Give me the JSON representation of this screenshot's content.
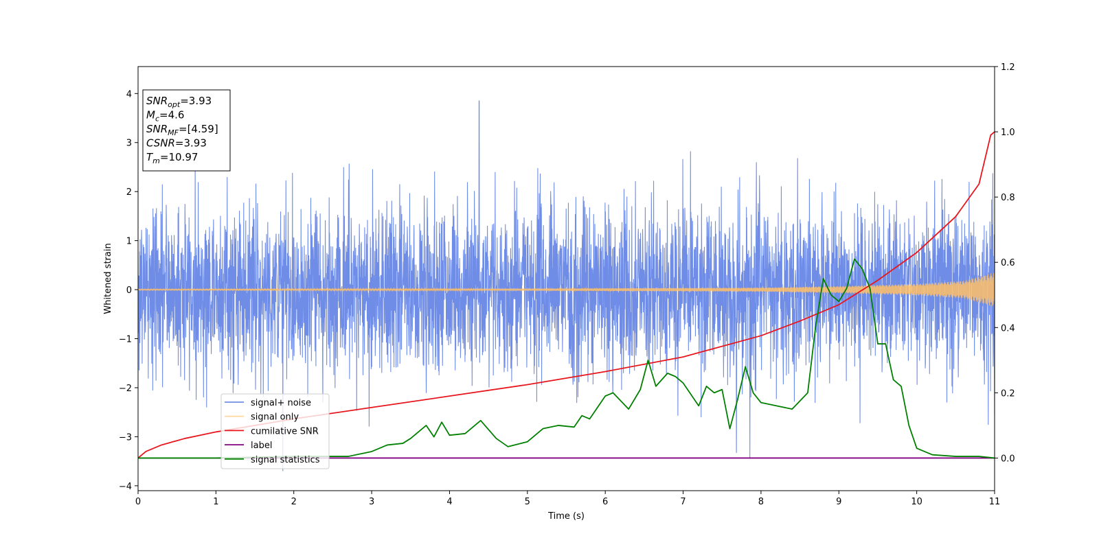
{
  "chart_data": {
    "type": "line",
    "xlabel": "Time (s)",
    "ylabel": "Whitened strain",
    "xlim": [
      0,
      11
    ],
    "ylim": [
      -4.1,
      4.55
    ],
    "y2lim": [
      -0.1,
      1.2
    ],
    "x_ticks": [
      0,
      1,
      2,
      3,
      4,
      5,
      6,
      7,
      8,
      9,
      10,
      11
    ],
    "y_ticks": [
      -4,
      -3,
      -2,
      -1,
      0,
      1,
      2,
      3,
      4
    ],
    "y2_ticks": [
      0.0,
      0.2,
      0.4,
      0.6,
      0.8,
      1.0,
      1.2
    ],
    "grid": false,
    "legend_placement": "lower-left",
    "info_box": [
      {
        "sym": "SNR",
        "sub": "opt",
        "value": "=3.93"
      },
      {
        "sym": "M",
        "sub": "c",
        "value": "=4.6"
      },
      {
        "sym": "SNR",
        "sub": "MF",
        "value": "=[4.59]"
      },
      {
        "sym": "CSNR",
        "sub": "",
        "value": "=3.93"
      },
      {
        "sym": "T",
        "sub": "m",
        "value": "=10.97"
      }
    ],
    "series": [
      {
        "name": "signal+ noise",
        "color": "#6f8de6",
        "axis": "left",
        "kind": "noise",
        "std": 0.85,
        "peak": 3.85,
        "trough": -3.7
      },
      {
        "name": "signal only",
        "color": "#ffbf66",
        "axis": "left",
        "kind": "chirp",
        "amplitude_envelope": {
          "x": [
            0,
            5,
            8,
            9,
            10,
            10.6,
            11
          ],
          "y": [
            0.01,
            0.02,
            0.04,
            0.07,
            0.12,
            0.18,
            0.35
          ]
        }
      },
      {
        "name": "cumilative SNR",
        "color": "#e8151c",
        "axis": "right",
        "kind": "line",
        "x": [
          0,
          0.1,
          0.3,
          0.6,
          1,
          2,
          3,
          4,
          5,
          6,
          7,
          8,
          8.5,
          9,
          9.5,
          10,
          10.5,
          10.8,
          10.95,
          11
        ],
        "y": [
          0.0,
          0.02,
          0.04,
          0.06,
          0.08,
          0.12,
          0.155,
          0.19,
          0.225,
          0.265,
          0.31,
          0.375,
          0.42,
          0.47,
          0.545,
          0.63,
          0.74,
          0.84,
          0.99,
          1.0
        ]
      },
      {
        "name": "label",
        "color": "#800080",
        "axis": "right",
        "kind": "line",
        "x": [
          0,
          11
        ],
        "y": [
          0.0,
          0.0
        ]
      },
      {
        "name": "signal statistics",
        "color": "#008000",
        "axis": "right",
        "kind": "line",
        "x": [
          0,
          1,
          2,
          2.7,
          3,
          3.2,
          3.4,
          3.5,
          3.7,
          3.8,
          3.9,
          4.0,
          4.2,
          4.4,
          4.6,
          4.75,
          5.0,
          5.2,
          5.4,
          5.6,
          5.7,
          5.8,
          5.9,
          6.0,
          6.1,
          6.3,
          6.45,
          6.55,
          6.65,
          6.8,
          6.9,
          7.0,
          7.2,
          7.3,
          7.4,
          7.5,
          7.6,
          7.7,
          7.8,
          7.9,
          8.0,
          8.2,
          8.4,
          8.6,
          8.7,
          8.8,
          8.9,
          9.0,
          9.1,
          9.2,
          9.3,
          9.4,
          9.5,
          9.6,
          9.7,
          9.8,
          9.9,
          10.0,
          10.2,
          10.5,
          10.8,
          11.0
        ],
        "y": [
          0.0,
          0.0,
          0.005,
          0.005,
          0.02,
          0.04,
          0.045,
          0.06,
          0.1,
          0.065,
          0.11,
          0.07,
          0.075,
          0.115,
          0.06,
          0.035,
          0.05,
          0.09,
          0.1,
          0.095,
          0.13,
          0.12,
          0.155,
          0.19,
          0.2,
          0.15,
          0.21,
          0.3,
          0.22,
          0.26,
          0.25,
          0.23,
          0.16,
          0.22,
          0.2,
          0.21,
          0.09,
          0.18,
          0.28,
          0.2,
          0.17,
          0.16,
          0.15,
          0.2,
          0.4,
          0.55,
          0.5,
          0.48,
          0.52,
          0.61,
          0.58,
          0.52,
          0.35,
          0.35,
          0.24,
          0.22,
          0.1,
          0.03,
          0.01,
          0.005,
          0.005,
          0.0
        ]
      }
    ]
  }
}
